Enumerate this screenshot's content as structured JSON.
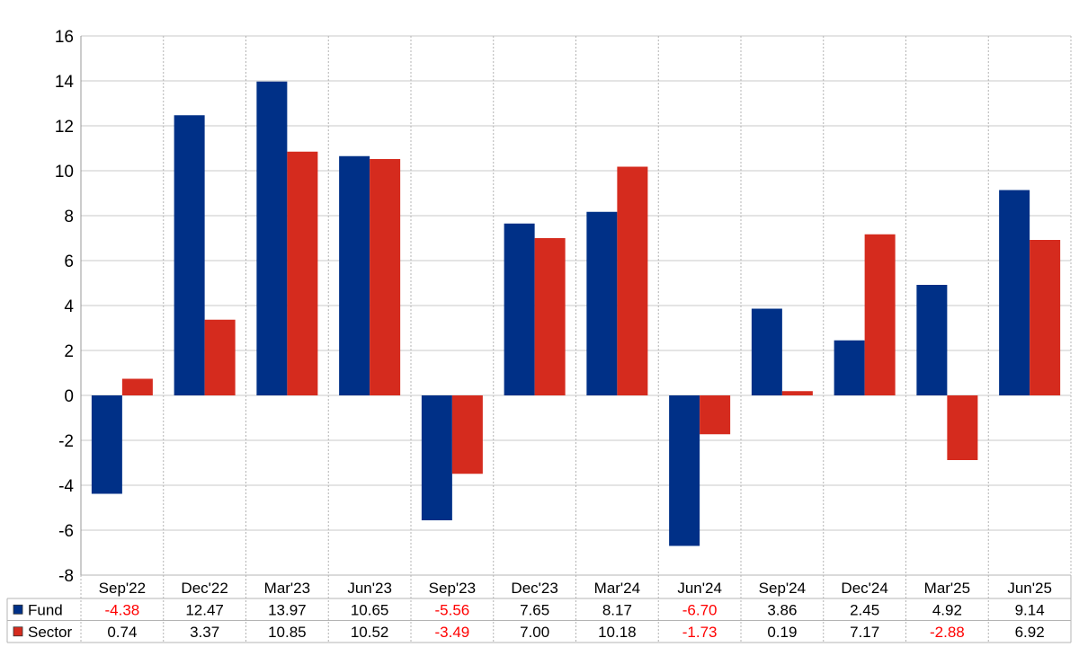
{
  "chart_data": {
    "type": "bar",
    "categories": [
      "Sep'22",
      "Dec'22",
      "Mar'23",
      "Jun'23",
      "Sep'23",
      "Dec'23",
      "Mar'24",
      "Jun'24",
      "Sep'24",
      "Dec'24",
      "Mar'25",
      "Jun'25"
    ],
    "series": [
      {
        "name": "Fund",
        "color": "#003087",
        "values": [
          -4.38,
          12.47,
          13.97,
          10.65,
          -5.56,
          7.65,
          8.17,
          -6.7,
          3.86,
          2.45,
          4.92,
          9.14
        ],
        "labels": [
          "-4.38",
          "12.47",
          "13.97",
          "10.65",
          "-5.56",
          "7.65",
          "8.17",
          "-6.70",
          "3.86",
          "2.45",
          "4.92",
          "9.14"
        ]
      },
      {
        "name": "Sector",
        "color": "#d52b1e",
        "values": [
          0.74,
          3.37,
          10.85,
          10.52,
          -3.49,
          7.0,
          10.18,
          -1.73,
          0.19,
          7.17,
          -2.88,
          6.92
        ],
        "labels": [
          "0.74",
          "3.37",
          "10.85",
          "10.52",
          "-3.49",
          "7.00",
          "10.18",
          "-1.73",
          "0.19",
          "7.17",
          "-2.88",
          "6.92"
        ]
      }
    ],
    "ylim": [
      -8,
      16
    ],
    "yticks": [
      "-8",
      "-6",
      "-4",
      "-2",
      "0",
      "2",
      "4",
      "6",
      "8",
      "10",
      "12",
      "14",
      "16"
    ],
    "grid": true,
    "negative_label_color": "#ff0000",
    "legend_placement": "table-below"
  }
}
